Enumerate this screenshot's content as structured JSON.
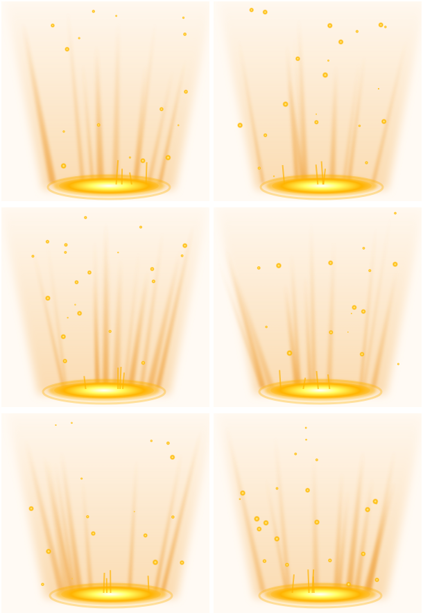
{
  "sprite_sheet": {
    "columns": 2,
    "rows": 3,
    "frames": [
      {
        "id": "frame-1",
        "variant": 1
      },
      {
        "id": "frame-2",
        "variant": 2
      },
      {
        "id": "frame-3",
        "variant": 3
      },
      {
        "id": "frame-4",
        "variant": 4
      },
      {
        "id": "frame-5",
        "variant": 5
      },
      {
        "id": "frame-6",
        "variant": 6
      }
    ],
    "colors": {
      "background": "#fffaf4",
      "glow_outer": "#f7c27a",
      "ray": "#f0a440",
      "ring": "#ffb300",
      "core": "#ffff66",
      "particle": "#ffb800"
    },
    "effect_icon": "light-beam-portal-icon"
  }
}
